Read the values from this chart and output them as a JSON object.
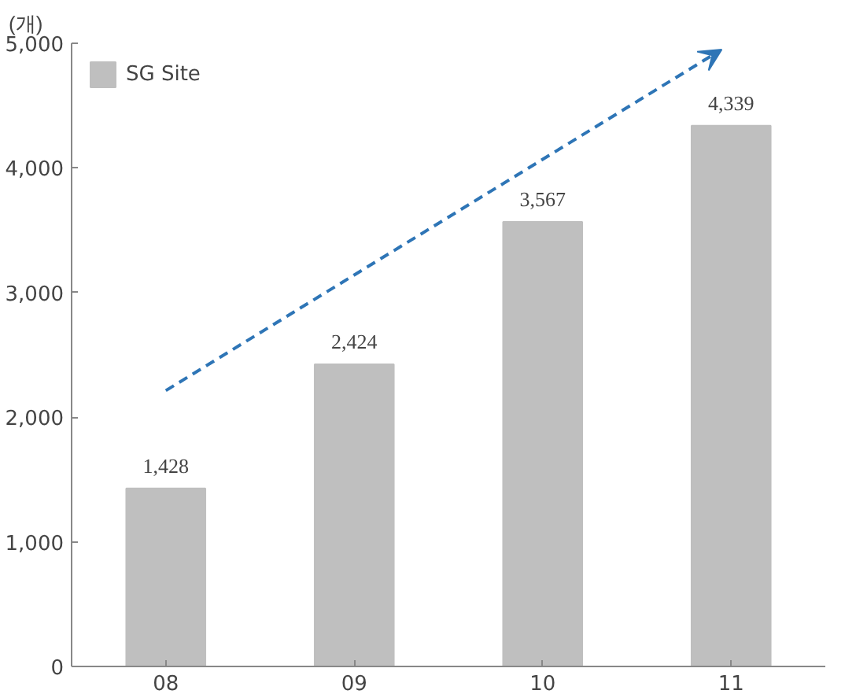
{
  "chart_data": {
    "type": "bar",
    "ylabel": "(개)",
    "categories": [
      "08",
      "09",
      "10",
      "11"
    ],
    "series": [
      {
        "name": "SG Site",
        "color": "#bfbfbf",
        "values": [
          1428,
          2424,
          3567,
          4339
        ]
      }
    ],
    "ylim": [
      0,
      5000
    ],
    "yticks": [
      {
        "value": 0,
        "label": "0"
      },
      {
        "value": 1000,
        "label": "1,000"
      },
      {
        "value": 2000,
        "label": "2,000"
      },
      {
        "value": 3000,
        "label": "3,000"
      },
      {
        "value": 4000,
        "label": "4,000"
      },
      {
        "value": 5000,
        "label": "5,000"
      }
    ],
    "value_labels": [
      "1,428",
      "2,424",
      "3,567",
      "4,339"
    ],
    "legend": "top left",
    "grid": false
  }
}
